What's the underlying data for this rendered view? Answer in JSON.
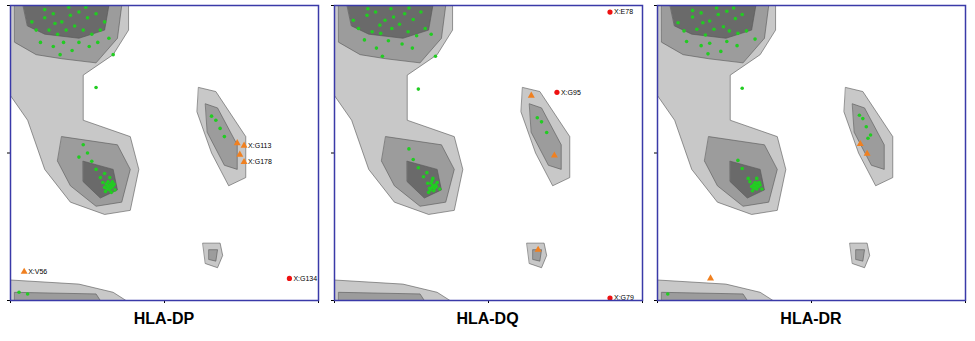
{
  "chart_data": [
    {
      "type": "scatter",
      "title": "HLA-DP",
      "xlim": [
        -180,
        180
      ],
      "ylim": [
        -180,
        180
      ],
      "xticks": [
        -180,
        0,
        180
      ],
      "yticks": [
        -180,
        0,
        180
      ],
      "tick_labels": false,
      "color": "#22cc22",
      "marker": "circle",
      "points": [
        [
          -140,
          165
        ],
        [
          -130,
          170
        ],
        [
          -120,
          160
        ],
        [
          -110,
          168
        ],
        [
          -100,
          172
        ],
        [
          -90,
          165
        ],
        [
          -80,
          170
        ],
        [
          -150,
          150
        ],
        [
          -135,
          150
        ],
        [
          -125,
          145
        ],
        [
          -115,
          150
        ],
        [
          -105,
          155
        ],
        [
          -95,
          150
        ],
        [
          -85,
          145
        ],
        [
          -75,
          150
        ],
        [
          -70,
          160
        ],
        [
          -145,
          135
        ],
        [
          -130,
          130
        ],
        [
          -118,
          135
        ],
        [
          -100,
          135
        ],
        [
          -88,
          130
        ],
        [
          -78,
          135
        ],
        [
          -122,
          120
        ],
        [
          -108,
          125
        ],
        [
          -140,
          175
        ],
        [
          -65,
          140
        ],
        [
          -155,
          160
        ],
        [
          -92,
          178
        ],
        [
          -112,
          178
        ],
        [
          -128,
          158
        ],
        [
          -65,
          -40
        ],
        [
          -62,
          -42
        ],
        [
          -68,
          -38
        ],
        [
          -64,
          -45
        ],
        [
          -60,
          -40
        ],
        [
          -66,
          -35
        ],
        [
          -70,
          -42
        ],
        [
          -63,
          -38
        ],
        [
          -67,
          -44
        ],
        [
          -61,
          -35
        ],
        [
          -72,
          -36
        ],
        [
          -58,
          -45
        ],
        [
          -64,
          -30
        ],
        [
          -69,
          -47
        ],
        [
          -75,
          -30
        ],
        [
          -80,
          -20
        ],
        [
          -85,
          -10
        ],
        [
          -90,
          0
        ],
        [
          -95,
          10
        ],
        [
          -70,
          -25
        ],
        [
          -100,
          -5
        ],
        [
          -62,
          -48
        ],
        [
          -66,
          -41
        ],
        [
          -59,
          -38
        ],
        [
          60,
          40
        ],
        [
          55,
          45
        ],
        [
          70,
          20
        ],
        [
          65,
          30
        ],
        [
          -80,
          80
        ],
        [
          -60,
          120
        ],
        [
          -170,
          -170
        ],
        [
          -160,
          -172
        ]
      ],
      "outliers": [
        {
          "label": "X:G113",
          "phi": 93,
          "psi": 9,
          "color": "#f08020",
          "marker": "triangle"
        },
        {
          "label": "X:G178",
          "phi": 93,
          "psi": -11,
          "color": "#f08020",
          "marker": "triangle"
        },
        {
          "phi": 85,
          "psi": 12,
          "color": "#f08020",
          "marker": "triangle"
        },
        {
          "phi": 88,
          "psi": -2,
          "color": "#f08020",
          "marker": "triangle"
        },
        {
          "label": "X:V56",
          "phi": -164,
          "psi": -145,
          "color": "#f08020",
          "marker": "triangle"
        },
        {
          "label": "X:G134",
          "phi": 146,
          "psi": -153,
          "color": "#ee1111",
          "marker": "circle"
        }
      ]
    },
    {
      "type": "scatter",
      "title": "HLA-DQ",
      "xlim": [
        -180,
        180
      ],
      "ylim": [
        -180,
        180
      ],
      "xticks": [
        -180,
        0,
        180
      ],
      "yticks": [
        -180,
        0,
        180
      ],
      "tick_labels": false,
      "color": "#22cc22",
      "marker": "circle",
      "points": [
        [
          -142,
          168
        ],
        [
          -132,
          172
        ],
        [
          -121,
          162
        ],
        [
          -111,
          166
        ],
        [
          -98,
          170
        ],
        [
          -88,
          163
        ],
        [
          -79,
          172
        ],
        [
          -152,
          152
        ],
        [
          -136,
          148
        ],
        [
          -126,
          146
        ],
        [
          -113,
          152
        ],
        [
          -104,
          157
        ],
        [
          -94,
          148
        ],
        [
          -84,
          143
        ],
        [
          -74,
          152
        ],
        [
          -145,
          138
        ],
        [
          -131,
          128
        ],
        [
          -117,
          137
        ],
        [
          -101,
          133
        ],
        [
          -89,
          128
        ],
        [
          -124,
          118
        ],
        [
          -141,
          176
        ],
        [
          -158,
          162
        ],
        [
          -93,
          177
        ],
        [
          -114,
          176
        ],
        [
          -127,
          156
        ],
        [
          -67,
          145
        ],
        [
          -65,
          -40
        ],
        [
          -63,
          -43
        ],
        [
          -67,
          -37
        ],
        [
          -64,
          -46
        ],
        [
          -61,
          -41
        ],
        [
          -66,
          -34
        ],
        [
          -69,
          -43
        ],
        [
          -62,
          -39
        ],
        [
          -68,
          -45
        ],
        [
          -60,
          -36
        ],
        [
          -71,
          -37
        ],
        [
          -57,
          -44
        ],
        [
          -65,
          -31
        ],
        [
          -70,
          -48
        ],
        [
          -76,
          -29
        ],
        [
          -82,
          -18
        ],
        [
          -88,
          -8
        ],
        [
          -93,
          5
        ],
        [
          -72,
          -24
        ],
        [
          -64,
          -40
        ],
        [
          -66,
          -42
        ],
        [
          62,
          38
        ],
        [
          57,
          43
        ],
        [
          68,
          25
        ],
        [
          -82,
          78
        ],
        [
          -62,
          118
        ]
      ],
      "outliers": [
        {
          "label": "X:G95",
          "phi": 80,
          "psi": 74,
          "color": "#ee1111",
          "marker": "circle"
        },
        {
          "label": "X:E78",
          "phi": 142,
          "psi": 172,
          "color": "#ee1111",
          "marker": "circle"
        },
        {
          "label": "X:G79",
          "phi": 142,
          "psi": -177,
          "color": "#ee1111",
          "marker": "circle"
        },
        {
          "phi": 77,
          "psi": -3,
          "color": "#f08020",
          "marker": "triangle"
        },
        {
          "phi": 50,
          "psi": 70,
          "color": "#f08020",
          "marker": "triangle"
        },
        {
          "phi": 58,
          "psi": -118,
          "color": "#f08020",
          "marker": "triangle"
        }
      ]
    },
    {
      "type": "scatter",
      "title": "HLA-DR",
      "xlim": [
        -180,
        180
      ],
      "ylim": [
        -180,
        180
      ],
      "xticks": [
        -180,
        0,
        180
      ],
      "yticks": [
        -180,
        0,
        180
      ],
      "tick_labels": false,
      "color": "#22cc22",
      "marker": "circle",
      "points": [
        [
          -139,
          166
        ],
        [
          -129,
          171
        ],
        [
          -119,
          161
        ],
        [
          -109,
          169
        ],
        [
          -99,
          173
        ],
        [
          -89,
          164
        ],
        [
          -81,
          169
        ],
        [
          -149,
          149
        ],
        [
          -134,
          151
        ],
        [
          -124,
          144
        ],
        [
          -114,
          151
        ],
        [
          -103,
          154
        ],
        [
          -96,
          149
        ],
        [
          -86,
          146
        ],
        [
          -76,
          149
        ],
        [
          -146,
          136
        ],
        [
          -129,
          131
        ],
        [
          -119,
          134
        ],
        [
          -99,
          136
        ],
        [
          -87,
          131
        ],
        [
          -121,
          121
        ],
        [
          -139,
          174
        ],
        [
          -156,
          159
        ],
        [
          -91,
          177
        ],
        [
          -111,
          177
        ],
        [
          -127,
          159
        ],
        [
          -66,
          139
        ],
        [
          -106,
          124
        ],
        [
          -65,
          -40
        ],
        [
          -62,
          -41
        ],
        [
          -68,
          -39
        ],
        [
          -64,
          -44
        ],
        [
          -60,
          -39
        ],
        [
          -66,
          -36
        ],
        [
          -70,
          -41
        ],
        [
          -63,
          -37
        ],
        [
          -67,
          -43
        ],
        [
          -61,
          -36
        ],
        [
          -72,
          -35
        ],
        [
          -58,
          -44
        ],
        [
          -64,
          -31
        ],
        [
          -69,
          -46
        ],
        [
          -74,
          -31
        ],
        [
          -81,
          -19
        ],
        [
          -86,
          -9
        ],
        [
          -65,
          -42
        ],
        [
          -63,
          -41
        ],
        [
          -67,
          -39
        ],
        [
          60,
          42
        ],
        [
          56,
          46
        ],
        [
          69,
          22
        ],
        [
          64,
          32
        ],
        [
          66,
          18
        ],
        [
          -81,
          79
        ],
        [
          -168,
          -172
        ]
      ],
      "outliers": [
        {
          "phi": 57,
          "psi": 11,
          "color": "#f08020",
          "marker": "triangle"
        },
        {
          "phi": 65,
          "psi": -1,
          "color": "#f08020",
          "marker": "triangle"
        },
        {
          "phi": -118,
          "psi": -153,
          "color": "#f08020",
          "marker": "triangle"
        }
      ]
    }
  ],
  "background_regions": [
    {
      "color": "#c8c8c8",
      "polygons": [
        [
          [
            -180,
            180
          ],
          [
            -42,
            180
          ],
          [
            -42,
            150
          ],
          [
            -60,
            120
          ],
          [
            -95,
            95
          ],
          [
            -95,
            40
          ],
          [
            -40,
            20
          ],
          [
            -30,
            -20
          ],
          [
            -40,
            -70
          ],
          [
            -70,
            -75
          ],
          [
            -110,
            -60
          ],
          [
            -140,
            -20
          ],
          [
            -160,
            40
          ],
          [
            -180,
            70
          ]
        ],
        [
          [
            40,
            80
          ],
          [
            60,
            75
          ],
          [
            95,
            20
          ],
          [
            95,
            -30
          ],
          [
            75,
            -40
          ],
          [
            55,
            0
          ],
          [
            38,
            50
          ]
        ],
        [
          [
            45,
            -110
          ],
          [
            65,
            -110
          ],
          [
            68,
            -125
          ],
          [
            62,
            -140
          ],
          [
            48,
            -135
          ]
        ],
        [
          [
            -180,
            -155
          ],
          [
            -100,
            -160
          ],
          [
            -60,
            -170
          ],
          [
            -45,
            -180
          ],
          [
            -180,
            -180
          ]
        ]
      ]
    },
    {
      "color": "#9c9c9c",
      "polygons": [
        [
          [
            -175,
            180
          ],
          [
            -50,
            180
          ],
          [
            -55,
            140
          ],
          [
            -80,
            110
          ],
          [
            -120,
            115
          ],
          [
            -150,
            120
          ],
          [
            -175,
            135
          ]
        ],
        [
          [
            -120,
            20
          ],
          [
            -55,
            10
          ],
          [
            -40,
            -20
          ],
          [
            -50,
            -60
          ],
          [
            -80,
            -65
          ],
          [
            -110,
            -40
          ],
          [
            -125,
            -10
          ]
        ],
        [
          [
            48,
            60
          ],
          [
            62,
            55
          ],
          [
            85,
            10
          ],
          [
            85,
            -20
          ],
          [
            70,
            -15
          ],
          [
            50,
            25
          ]
        ],
        [
          [
            52,
            -118
          ],
          [
            62,
            -118
          ],
          [
            60,
            -132
          ],
          [
            52,
            -130
          ]
        ],
        [
          [
            -175,
            -170
          ],
          [
            -80,
            -172
          ],
          [
            -75,
            -180
          ],
          [
            -175,
            -180
          ]
        ]
      ]
    },
    {
      "color": "#6a6a6a",
      "polygons": [
        [
          [
            -165,
            180
          ],
          [
            -65,
            180
          ],
          [
            -70,
            150
          ],
          [
            -100,
            140
          ],
          [
            -140,
            145
          ],
          [
            -160,
            155
          ]
        ],
        [
          [
            -95,
            -10
          ],
          [
            -60,
            -20
          ],
          [
            -55,
            -45
          ],
          [
            -75,
            -55
          ],
          [
            -95,
            -35
          ]
        ]
      ]
    }
  ]
}
